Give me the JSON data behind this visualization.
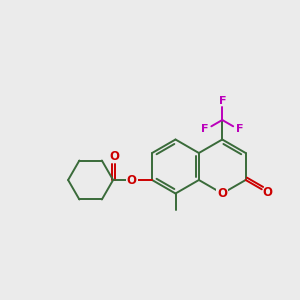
{
  "bg_color": "#ebebeb",
  "bond_color": "#3a6b3a",
  "o_color": "#cc0000",
  "f_color": "#bb00bb",
  "lw": 1.4,
  "r": 0.095,
  "cyr": 0.075,
  "figsize": [
    3.0,
    3.0
  ],
  "dpi": 100,
  "xlim": [
    0,
    1
  ],
  "ylim": [
    0,
    1
  ]
}
